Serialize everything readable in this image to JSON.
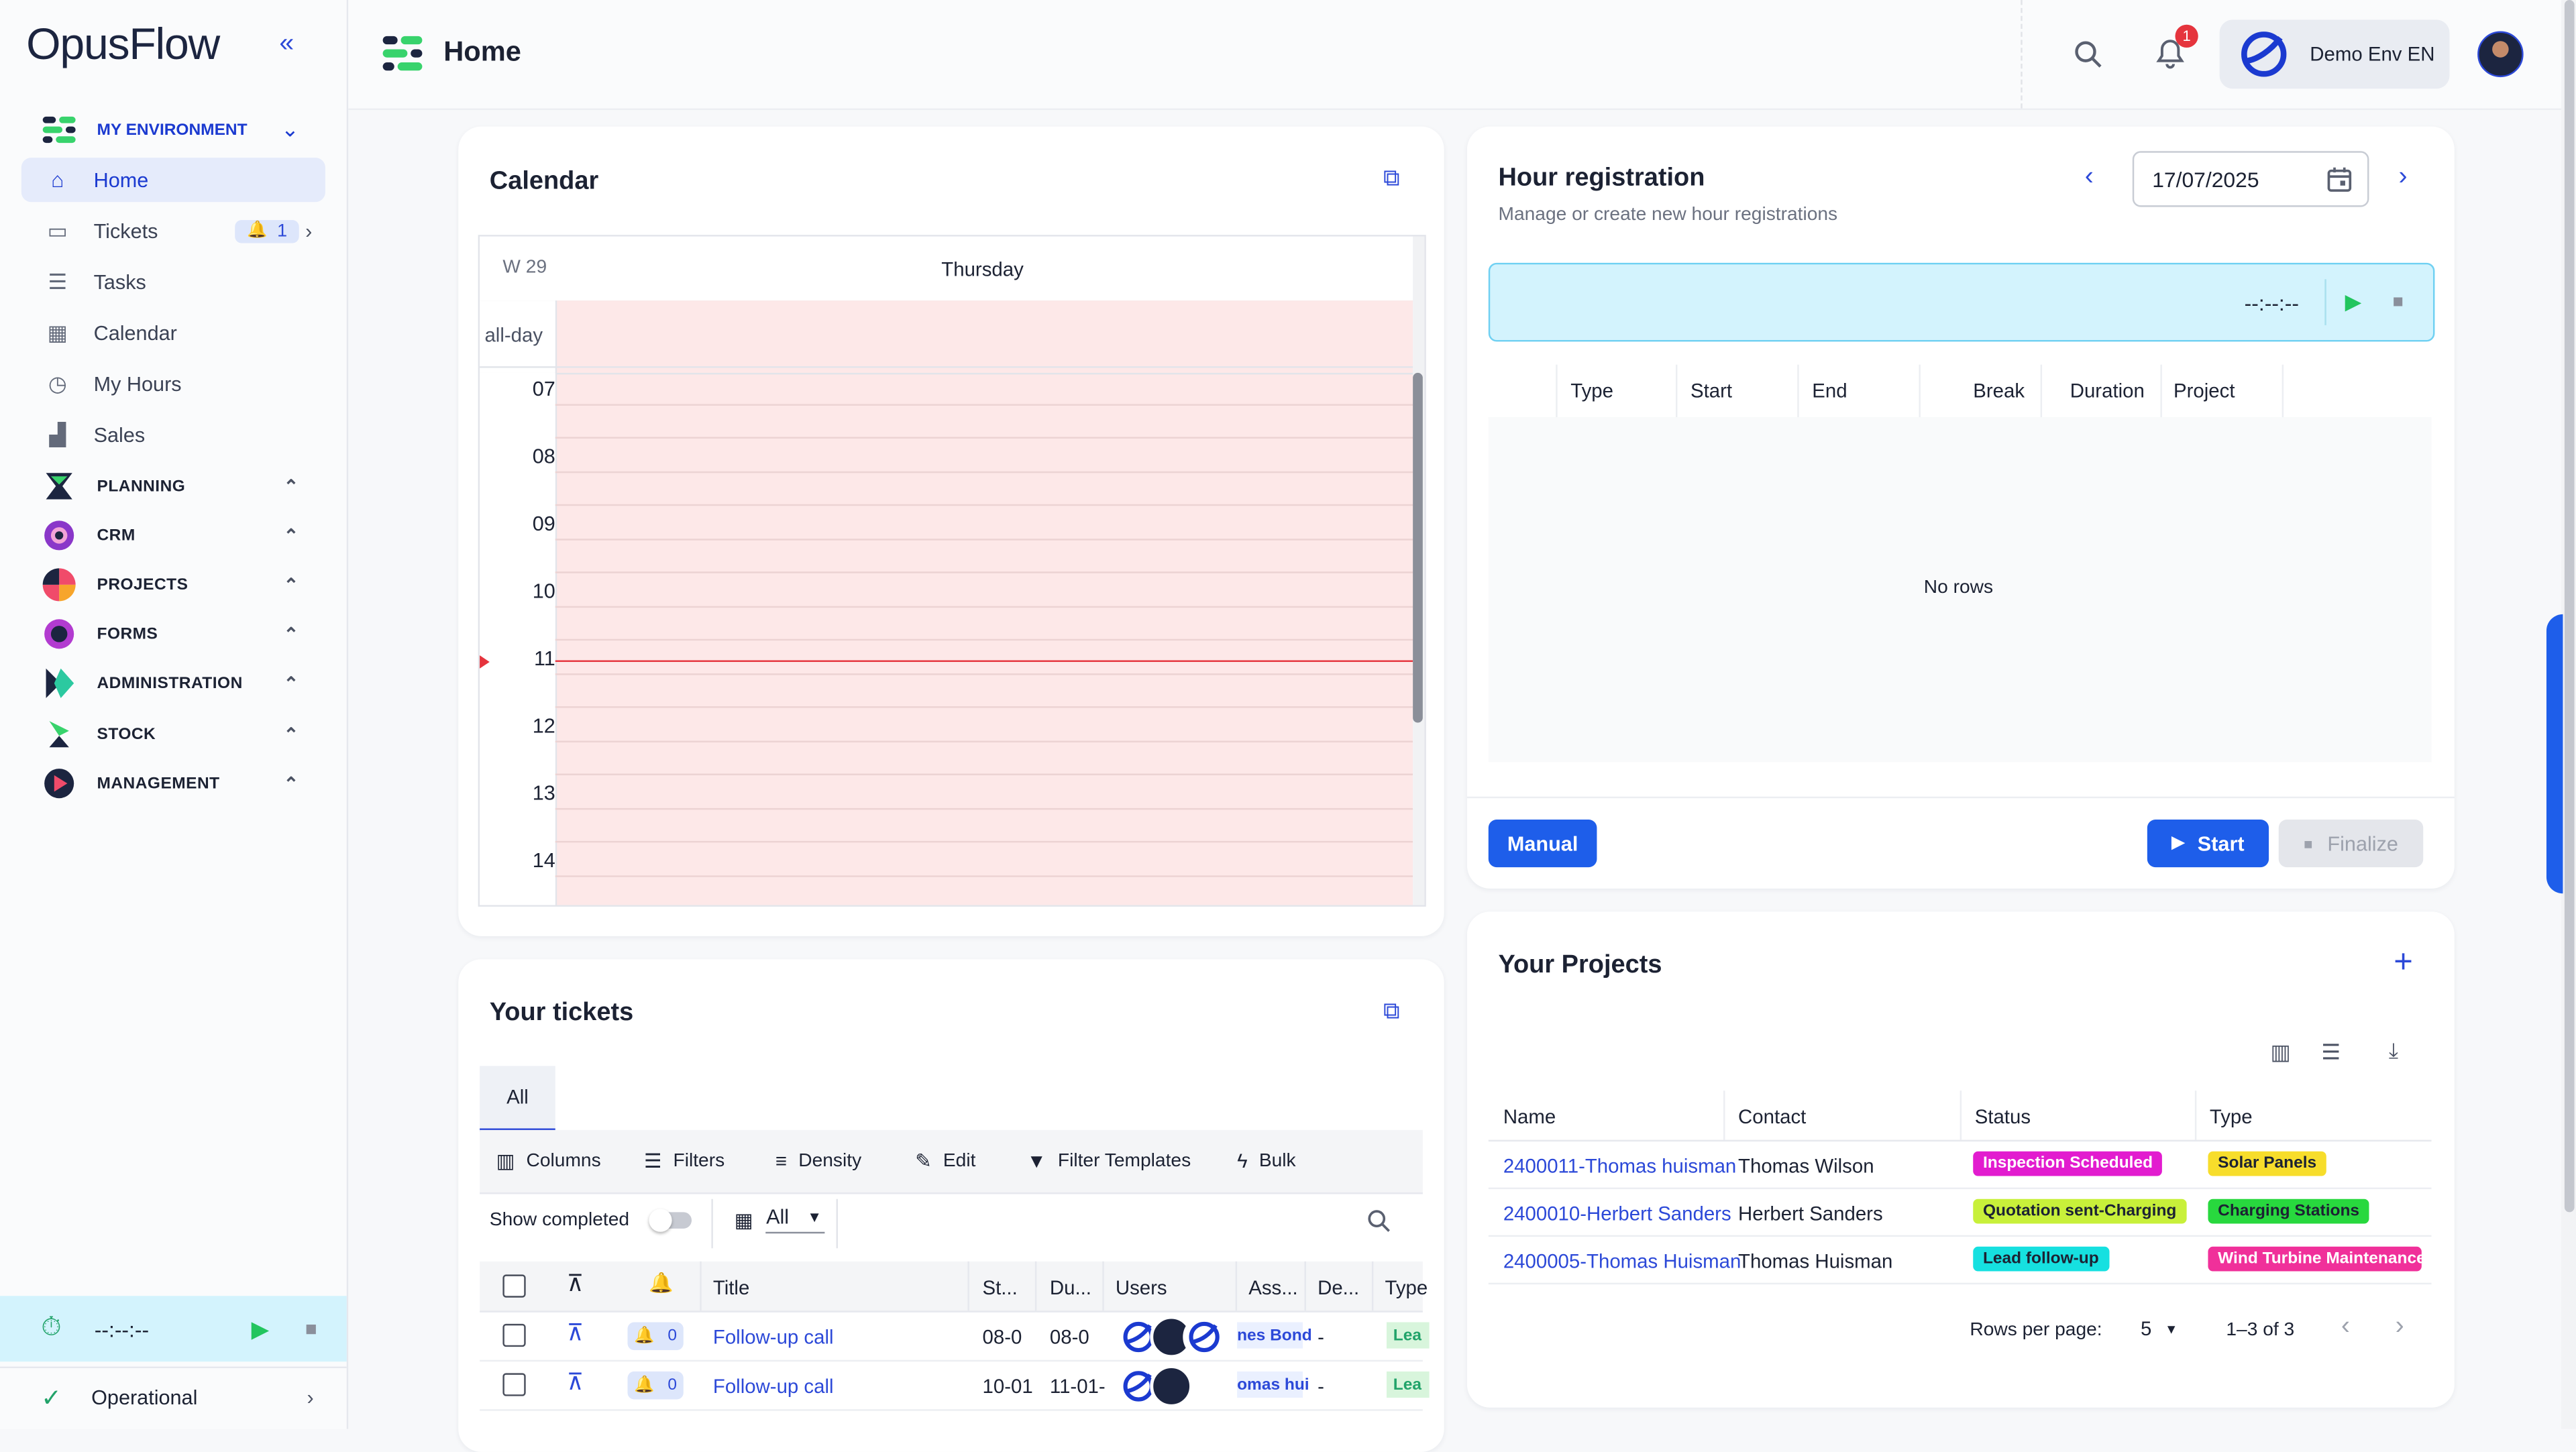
{
  "brand": {
    "logo": "OpusFlow"
  },
  "header": {
    "title": "Home",
    "notif_count": "1",
    "env_name": "Demo Env EN"
  },
  "sidebar": {
    "env_label": "MY ENVIRONMENT",
    "items": [
      {
        "label": "Home",
        "icon": "home-icon"
      },
      {
        "label": "Tickets",
        "icon": "ticket-icon",
        "badge": "1"
      },
      {
        "label": "Tasks",
        "icon": "tasks-icon"
      },
      {
        "label": "Calendar",
        "icon": "calendar-icon"
      },
      {
        "label": "My Hours",
        "icon": "hours-icon"
      },
      {
        "label": "Sales",
        "icon": "sales-icon"
      }
    ],
    "modules": [
      {
        "label": "PLANNING"
      },
      {
        "label": "CRM"
      },
      {
        "label": "PROJECTS"
      },
      {
        "label": "FORMS"
      },
      {
        "label": "ADMINISTRATION"
      },
      {
        "label": "STOCK"
      },
      {
        "label": "MANAGEMENT"
      }
    ],
    "timer": "--:--:--",
    "status": "Operational"
  },
  "calendar": {
    "title": "Calendar",
    "week": "W 29",
    "day": "Thursday",
    "allday": "all-day",
    "hours": [
      "07",
      "08",
      "09",
      "10",
      "11",
      "12",
      "13",
      "14"
    ]
  },
  "hours": {
    "title": "Hour registration",
    "subtitle": "Manage or create new hour registrations",
    "date": "17/07/2025",
    "timer": "--:--:--",
    "columns": [
      "Type",
      "Start",
      "End",
      "Break",
      "Duration",
      "Project"
    ],
    "empty": "No rows",
    "manual": "Manual",
    "start": "Start",
    "finalize": "Finalize"
  },
  "tickets": {
    "title": "Your tickets",
    "tab": "All",
    "toolbar": [
      "Columns",
      "Filters",
      "Density",
      "Edit",
      "Filter Templates",
      "Bulk"
    ],
    "show_completed": "Show completed",
    "filter_value": "All",
    "columns": [
      "Title",
      "St...",
      "Du...",
      "Users",
      "Ass...",
      "De...",
      "Type"
    ],
    "rows": [
      {
        "count": "0",
        "title": "Follow-up call",
        "start": "08-0",
        "due": "08-0",
        "assignee": "nes Bond",
        "deadline": "-",
        "type": "Lea"
      },
      {
        "count": "0",
        "title": "Follow-up call",
        "start": "10-01",
        "due": "11-01-",
        "assignee": "omas hui",
        "deadline": "-",
        "type": "Lea"
      }
    ]
  },
  "projects": {
    "title": "Your Projects",
    "columns": [
      "Name",
      "Contact",
      "Status",
      "Type"
    ],
    "rows": [
      {
        "name": "2400011-Thomas huisman",
        "contact": "Thomas Wilson",
        "status": "Inspection Scheduled",
        "status_color": "#e21ccf",
        "type": "Solar Panels",
        "type_color": "#f7dd2b",
        "type_text": "#1c2233"
      },
      {
        "name": "2400010-Herbert Sanders",
        "contact": "Herbert Sanders",
        "status": "Quotation sent-Charging",
        "status_color": "#c8f03a",
        "type": "Charging Stations",
        "type_color": "#28d83e",
        "type_text": "#1c2233"
      },
      {
        "name": "2400005-Thomas Huisman",
        "contact": "Thomas Huisman",
        "status": "Lead follow-up",
        "status_color": "#16e0e0",
        "type": "Wind Turbine Maintenance",
        "type_color": "#f0309a",
        "type_text": "#ffffff"
      }
    ],
    "rows_per_page_label": "Rows per page:",
    "rows_per_page": "5",
    "range": "1–3 of 3"
  },
  "colors": {
    "accent": "#1e5eea",
    "nav_active": "#e5ebfb",
    "timer_bg": "#d3f3fd",
    "calendar_bg": "#fde8e8"
  }
}
